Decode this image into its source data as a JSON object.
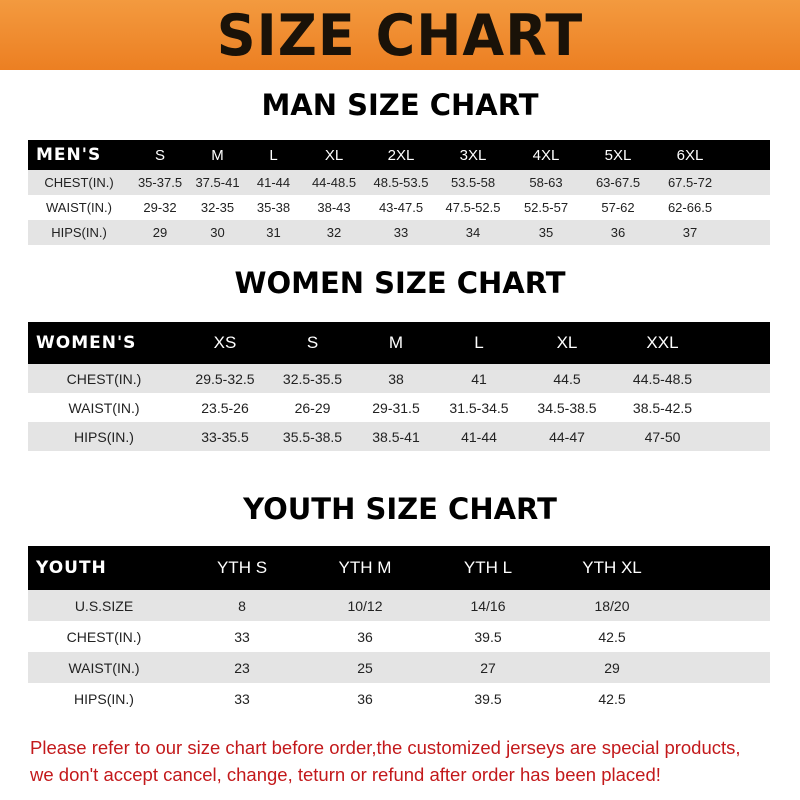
{
  "banner": {
    "title": "SIZE CHART",
    "color": "#ee8428"
  },
  "men": {
    "title": "MAN SIZE CHART",
    "header": [
      "MEN'S",
      "S",
      "M",
      "L",
      "XL",
      "2XL",
      "3XL",
      "4XL",
      "5XL",
      "6XL"
    ],
    "rows": [
      [
        "CHEST(IN.)",
        "35-37.5",
        "37.5-41",
        "41-44",
        "44-48.5",
        "48.5-53.5",
        "53.5-58",
        "58-63",
        "63-67.5",
        "67.5-72"
      ],
      [
        "WAIST(IN.)",
        "29-32",
        "32-35",
        "35-38",
        "38-43",
        "43-47.5",
        "47.5-52.5",
        "52.5-57",
        "57-62",
        "62-66.5"
      ],
      [
        "HIPS(IN.)",
        "29",
        "30",
        "31",
        "32",
        "33",
        "34",
        "35",
        "36",
        "37"
      ]
    ]
  },
  "women": {
    "title": "WOMEN SIZE CHART",
    "header": [
      "WOMEN'S",
      "XS",
      "S",
      "M",
      "L",
      "XL",
      "XXL"
    ],
    "rows": [
      [
        "CHEST(IN.)",
        "29.5-32.5",
        "32.5-35.5",
        "38",
        "41",
        "44.5",
        "44.5-48.5"
      ],
      [
        "WAIST(IN.)",
        "23.5-26",
        "26-29",
        "29-31.5",
        "31.5-34.5",
        "34.5-38.5",
        "38.5-42.5"
      ],
      [
        "HIPS(IN.)",
        "33-35.5",
        "35.5-38.5",
        "38.5-41",
        "41-44",
        "44-47",
        "47-50"
      ]
    ]
  },
  "youth": {
    "title": "YOUTH SIZE CHART",
    "header": [
      "YOUTH",
      "YTH S",
      "YTH M",
      "YTH L",
      "YTH XL"
    ],
    "rows": [
      [
        "U.S.SIZE",
        "8",
        "10/12",
        "14/16",
        "18/20"
      ],
      [
        "CHEST(IN.)",
        "33",
        "36",
        "39.5",
        "42.5"
      ],
      [
        "WAIST(IN.)",
        "23",
        "25",
        "27",
        "29"
      ],
      [
        "HIPS(IN.)",
        "33",
        "36",
        "39.5",
        "42.5"
      ]
    ]
  },
  "note": {
    "line1": "Please refer to our size chart before order,the customized jerseys are special products,",
    "line2": "we don't accept cancel, change, teturn or refund after order has been placed!"
  }
}
